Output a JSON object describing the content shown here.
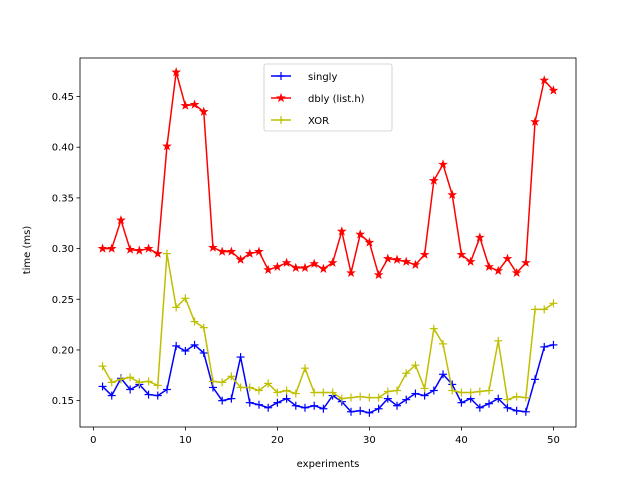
{
  "chart_data": {
    "type": "line",
    "xlabel": "experiments",
    "ylabel": "time (ms)",
    "xlim": [
      -1.45,
      52.45
    ],
    "ylim": [
      0.124,
      0.488
    ],
    "xticks": [
      0,
      10,
      20,
      30,
      40,
      50
    ],
    "yticks": [
      0.15,
      0.2,
      0.25,
      0.3,
      0.35,
      0.4,
      0.45
    ],
    "ytick_labels": [
      "0.15",
      "0.20",
      "0.25",
      "0.30",
      "0.35",
      "0.40",
      "0.45"
    ],
    "legend_position": "upper-center",
    "grid": false,
    "x": [
      1,
      2,
      3,
      4,
      5,
      6,
      7,
      8,
      9,
      10,
      11,
      12,
      13,
      14,
      15,
      16,
      17,
      18,
      19,
      20,
      21,
      22,
      23,
      24,
      25,
      26,
      27,
      28,
      29,
      30,
      31,
      32,
      33,
      34,
      35,
      36,
      37,
      38,
      39,
      40,
      41,
      42,
      43,
      44,
      45,
      46,
      47,
      48,
      49,
      50
    ],
    "series": [
      {
        "name": "singly",
        "color": "#0000ff",
        "marker": "plus",
        "values": [
          0.164,
          0.155,
          0.172,
          0.161,
          0.166,
          0.156,
          0.155,
          0.161,
          0.204,
          0.199,
          0.205,
          0.197,
          0.163,
          0.15,
          0.152,
          0.193,
          0.148,
          0.146,
          0.143,
          0.148,
          0.152,
          0.145,
          0.143,
          0.145,
          0.142,
          0.155,
          0.149,
          0.139,
          0.14,
          0.138,
          0.142,
          0.152,
          0.145,
          0.151,
          0.157,
          0.155,
          0.16,
          0.176,
          0.166,
          0.148,
          0.152,
          0.143,
          0.147,
          0.152,
          0.143,
          0.14,
          0.139,
          0.171,
          0.203,
          0.205
        ]
      },
      {
        "name": "dbly (list.h)",
        "color": "#ff0000",
        "marker": "star",
        "values": [
          0.3,
          0.3,
          0.328,
          0.299,
          0.298,
          0.3,
          0.295,
          0.401,
          0.474,
          0.441,
          0.442,
          0.435,
          0.301,
          0.297,
          0.297,
          0.289,
          0.295,
          0.297,
          0.279,
          0.282,
          0.286,
          0.281,
          0.281,
          0.285,
          0.28,
          0.286,
          0.317,
          0.276,
          0.314,
          0.306,
          0.274,
          0.29,
          0.289,
          0.287,
          0.284,
          0.294,
          0.367,
          0.383,
          0.353,
          0.294,
          0.287,
          0.311,
          0.282,
          0.278,
          0.29,
          0.276,
          0.286,
          0.425,
          0.466,
          0.456
        ]
      },
      {
        "name": "XOR",
        "color": "#bfbf00",
        "marker": "plus",
        "values": [
          0.184,
          0.168,
          0.171,
          0.173,
          0.168,
          0.169,
          0.165,
          0.295,
          0.242,
          0.251,
          0.228,
          0.222,
          0.169,
          0.168,
          0.174,
          0.163,
          0.163,
          0.16,
          0.167,
          0.158,
          0.16,
          0.157,
          0.182,
          0.158,
          0.158,
          0.158,
          0.152,
          0.153,
          0.154,
          0.153,
          0.153,
          0.159,
          0.16,
          0.177,
          0.185,
          0.162,
          0.221,
          0.206,
          0.16,
          0.158,
          0.158,
          0.159,
          0.16,
          0.209,
          0.151,
          0.154,
          0.153,
          0.24,
          0.24,
          0.246
        ]
      }
    ]
  }
}
